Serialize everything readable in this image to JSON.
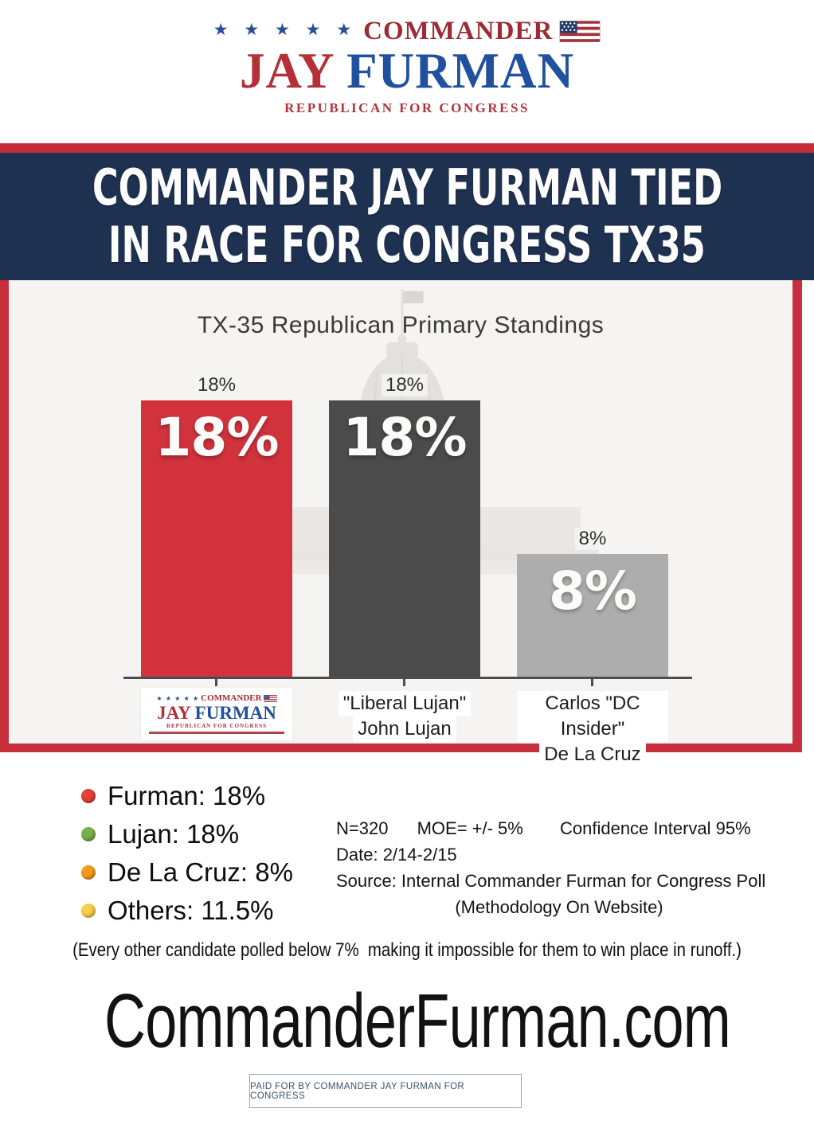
{
  "logo": {
    "stars": "★ ★ ★ ★ ★",
    "commander": "COMMANDER",
    "first_name": "JAY",
    "last_name": "FURMAN",
    "tagline": "REPUBLICAN FOR CONGRESS"
  },
  "banner": {
    "line1": "COMMANDER JAY FURMAN TIED",
    "line2": "IN RACE FOR CONGRESS TX35"
  },
  "chart": {
    "title": "TX-35 Republican Primary Standings",
    "bars": [
      {
        "top_label": "18%",
        "value_label": "18%"
      },
      {
        "top_label": "18%",
        "value_label": "18%",
        "line1": "\"Liberal Lujan\"",
        "line2": "John Lujan"
      },
      {
        "top_label": "8%",
        "value_label": "8%",
        "line1": "Carlos \"DC Insider\"",
        "line2": "De La Cruz"
      }
    ]
  },
  "chart_data": {
    "type": "bar",
    "title": "TX-35 Republican Primary Standings",
    "categories": [
      "Commander Jay Furman",
      "\"Liberal Lujan\" John Lujan",
      "Carlos \"DC Insider\" De La Cruz"
    ],
    "values": [
      18,
      18,
      8
    ],
    "value_labels": [
      "18%",
      "18%",
      "8%"
    ],
    "bar_colors": [
      "#d1323c",
      "#4c4b4c",
      "#adadad"
    ],
    "others_value": 11.5,
    "ylim": [
      0,
      20
    ],
    "grid": false,
    "legend_position": "below-chart-left",
    "background_watermark": "us-capitol-building"
  },
  "legend": {
    "items": [
      {
        "label": "Furman: 18%",
        "color": "#e6403a"
      },
      {
        "label": "Lujan: 18%",
        "color": "#77b14b"
      },
      {
        "label": "De La Cruz: 8%",
        "color": "#f49c1a"
      },
      {
        "label": "Others: 11.5%",
        "color": "#f6cf4d"
      }
    ]
  },
  "stats": {
    "n": "N=320",
    "moe": "MOE= +/- 5%",
    "confidence": "Confidence Interval 95%",
    "date": "Date: 2/14-2/15",
    "source": "Source: Internal Commander Furman for Congress Poll",
    "methodology": "(Methodology On Website)"
  },
  "note": "(Every other candidate polled below 7%  making it impossible for them to win place in runoff.)",
  "website": "CommanderFurman.com",
  "footer": {
    "disclaimer": "PAID FOR BY COMMANDER JAY FURMAN FOR CONGRESS"
  },
  "colors": {
    "brand_red": "#b42f38",
    "brand_blue": "#20509e",
    "banner_navy": "#1f3150",
    "frame_red": "#c5303c",
    "footer_blue": "#3b5268"
  }
}
